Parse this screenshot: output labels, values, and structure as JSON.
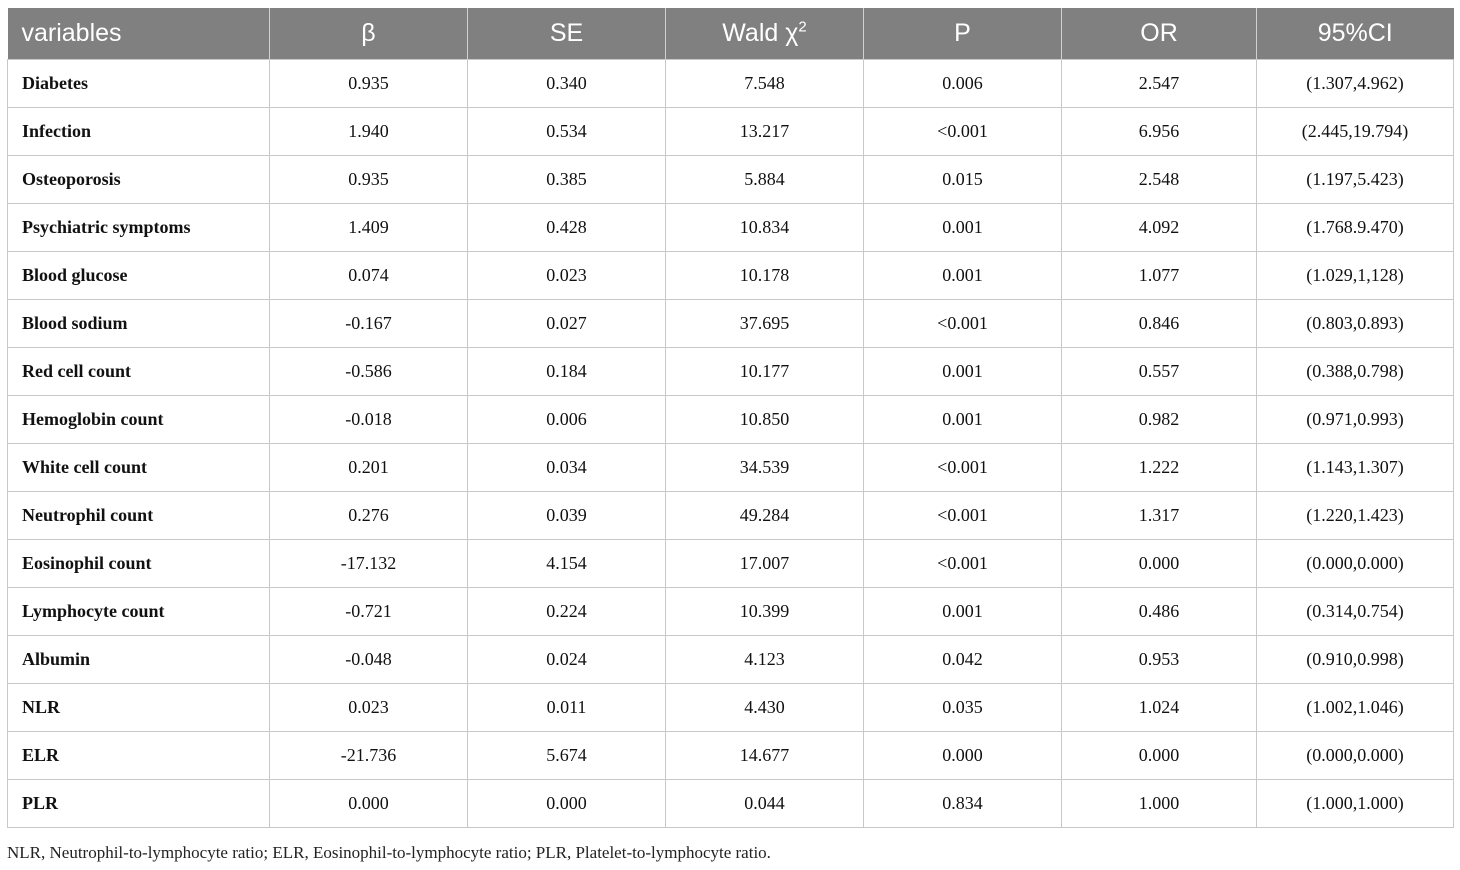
{
  "table": {
    "headers": [
      "variables",
      "β",
      "SE",
      "Wald χ",
      "P",
      "OR",
      "95%CI"
    ],
    "wald_superscript": "2",
    "rows": [
      [
        "Diabetes",
        "0.935",
        "0.340",
        "7.548",
        "0.006",
        "2.547",
        "(1.307,4.962)"
      ],
      [
        "Infection",
        "1.940",
        "0.534",
        "13.217",
        "<0.001",
        "6.956",
        "(2.445,19.794)"
      ],
      [
        "Osteoporosis",
        "0.935",
        "0.385",
        "5.884",
        "0.015",
        "2.548",
        "(1.197,5.423)"
      ],
      [
        "Psychiatric symptoms",
        "1.409",
        "0.428",
        "10.834",
        "0.001",
        "4.092",
        "(1.768.9.470)"
      ],
      [
        "Blood glucose",
        "0.074",
        "0.023",
        "10.178",
        "0.001",
        "1.077",
        "(1.029,1,128)"
      ],
      [
        "Blood sodium",
        "-0.167",
        "0.027",
        "37.695",
        "<0.001",
        "0.846",
        "(0.803,0.893)"
      ],
      [
        "Red cell count",
        "-0.586",
        "0.184",
        "10.177",
        "0.001",
        "0.557",
        "(0.388,0.798)"
      ],
      [
        "Hemoglobin count",
        "-0.018",
        "0.006",
        "10.850",
        "0.001",
        "0.982",
        "(0.971,0.993)"
      ],
      [
        "White cell count",
        "0.201",
        "0.034",
        "34.539",
        "<0.001",
        "1.222",
        "(1.143,1.307)"
      ],
      [
        "Neutrophil count",
        "0.276",
        "0.039",
        "49.284",
        "<0.001",
        "1.317",
        "(1.220,1.423)"
      ],
      [
        "Eosinophil count",
        "-17.132",
        "4.154",
        "17.007",
        "<0.001",
        "0.000",
        "(0.000,0.000)"
      ],
      [
        "Lymphocyte count",
        "-0.721",
        "0.224",
        "10.399",
        "0.001",
        "0.486",
        "(0.314,0.754)"
      ],
      [
        "Albumin",
        "-0.048",
        "0.024",
        "4.123",
        "0.042",
        "0.953",
        "(0.910,0.998)"
      ],
      [
        "NLR",
        "0.023",
        "0.011",
        "4.430",
        "0.035",
        "1.024",
        "(1.002,1.046)"
      ],
      [
        "ELR",
        "-21.736",
        "5.674",
        "14.677",
        "0.000",
        "0.000",
        "(0.000,0.000)"
      ],
      [
        "PLR",
        "0.000",
        "0.000",
        "0.044",
        "0.834",
        "1.000",
        "(1.000,1.000)"
      ]
    ]
  },
  "footnote": "NLR, Neutrophil-to-lymphocyte ratio; ELR, Eosinophil-to-lymphocyte ratio; PLR, Platelet-to-lymphocyte ratio.",
  "colors": {
    "header_bg": "#808080",
    "header_text": "#ffffff",
    "grid": "#c8c8c8"
  }
}
